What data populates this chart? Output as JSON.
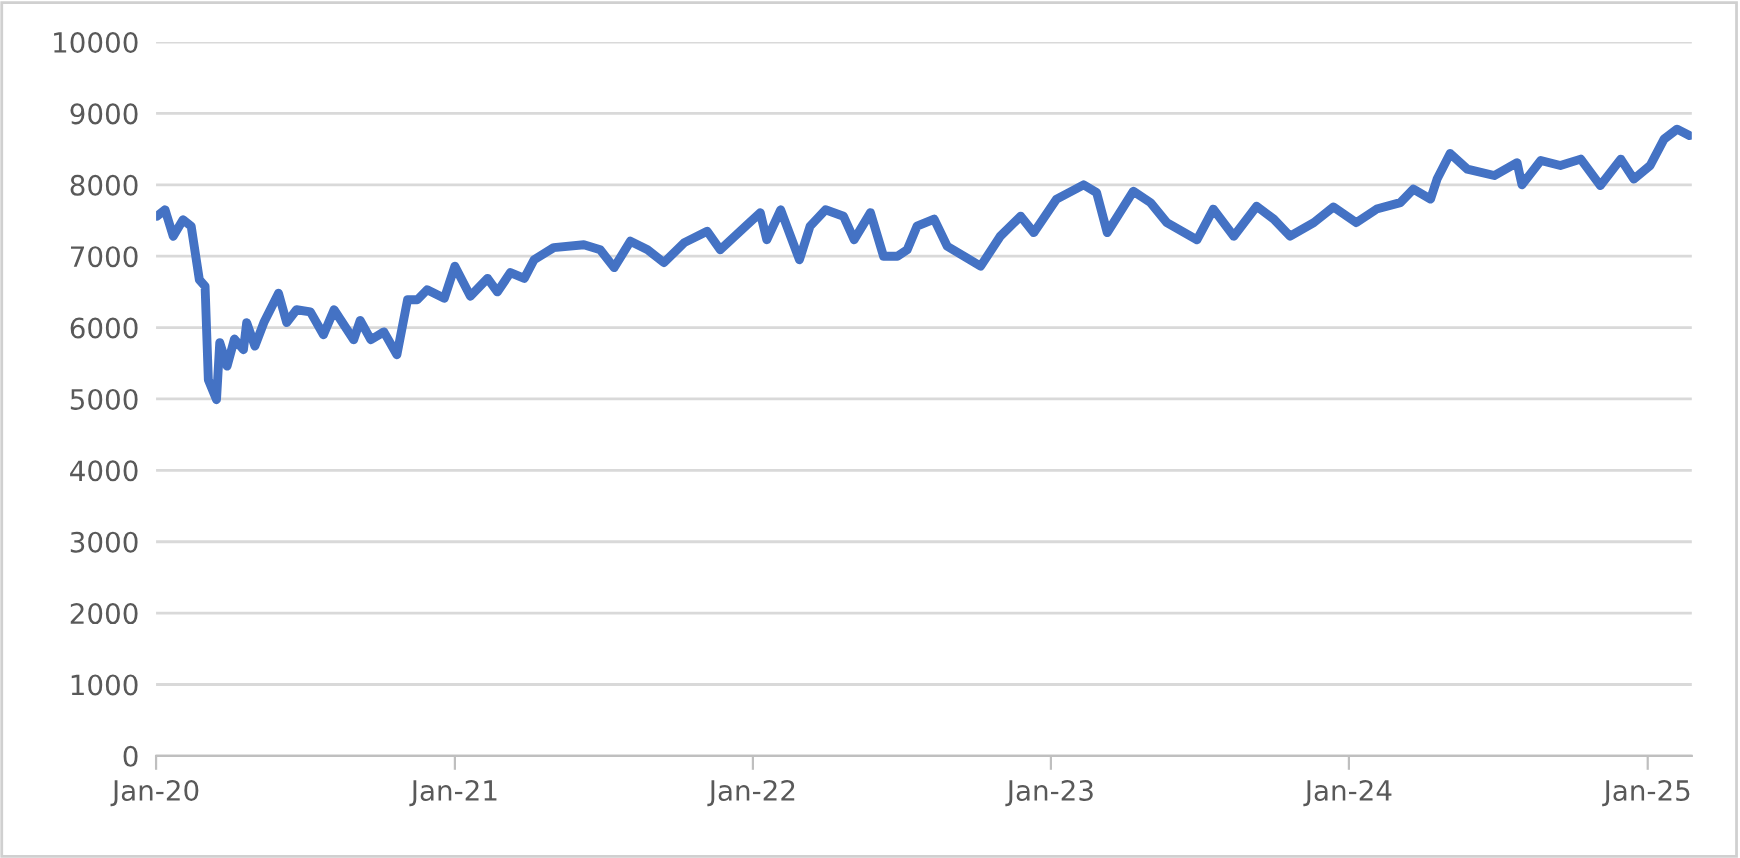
{
  "chart_data": {
    "type": "line",
    "x": [
      "2020-01-02",
      "2020-01-12",
      "2020-01-22",
      "2020-02-03",
      "2020-02-13",
      "2020-02-23",
      "2020-03-01",
      "2020-03-05",
      "2020-03-15",
      "2020-03-19",
      "2020-03-28",
      "2020-04-06",
      "2020-04-17",
      "2020-04-21",
      "2020-05-01",
      "2020-05-12",
      "2020-05-30",
      "2020-06-09",
      "2020-06-21",
      "2020-07-08",
      "2020-07-24",
      "2020-08-06",
      "2020-08-30",
      "2020-09-07",
      "2020-09-20",
      "2020-10-06",
      "2020-10-22",
      "2020-11-04",
      "2020-11-16",
      "2020-11-28",
      "2020-12-19",
      "2021-01-01",
      "2021-01-20",
      "2021-02-10",
      "2021-02-22",
      "2021-03-10",
      "2021-03-27",
      "2021-04-08",
      "2021-05-02",
      "2021-06-08",
      "2021-06-28",
      "2021-07-15",
      "2021-08-04",
      "2021-08-25",
      "2021-09-14",
      "2021-10-09",
      "2021-11-06",
      "2021-11-22",
      "2021-12-25",
      "2022-01-10",
      "2022-01-18",
      "2022-02-04",
      "2022-02-27",
      "2022-03-12",
      "2022-03-31",
      "2022-04-22",
      "2022-05-05",
      "2022-05-25",
      "2022-06-10",
      "2022-06-27",
      "2022-07-09",
      "2022-07-21",
      "2022-08-11",
      "2022-08-27",
      "2022-10-07",
      "2022-10-31",
      "2022-11-25",
      "2022-12-11",
      "2023-01-08",
      "2023-02-10",
      "2023-02-26",
      "2023-03-11",
      "2023-04-12",
      "2023-05-03",
      "2023-05-23",
      "2023-06-29",
      "2023-07-19",
      "2023-08-13",
      "2023-09-10",
      "2023-10-01",
      "2023-10-21",
      "2023-11-19",
      "2023-12-13",
      "2024-01-10",
      "2024-02-04",
      "2024-03-04",
      "2024-03-20",
      "2024-04-10",
      "2024-04-18",
      "2024-05-04",
      "2024-05-25",
      "2024-06-27",
      "2024-07-25",
      "2024-07-31",
      "2024-08-23",
      "2024-09-16",
      "2024-10-11",
      "2024-11-04",
      "2024-11-29",
      "2024-12-15",
      "2025-01-04",
      "2025-01-21",
      "2025-02-06",
      "2025-02-21"
    ],
    "series": [
      {
        "color": "#4472c4",
        "values": [
          7560,
          7650,
          7280,
          7510,
          7420,
          6670,
          6580,
          5270,
          4990,
          5790,
          5460,
          5840,
          5690,
          6070,
          5740,
          6070,
          6480,
          6070,
          6250,
          6220,
          5900,
          6250,
          5830,
          6100,
          5830,
          5940,
          5620,
          6390,
          6390,
          6530,
          6410,
          6860,
          6440,
          6690,
          6500,
          6770,
          6690,
          6950,
          7120,
          7160,
          7090,
          6840,
          7210,
          7090,
          6910,
          7190,
          7350,
          7090,
          7440,
          7610,
          7230,
          7650,
          6950,
          7420,
          7650,
          7560,
          7230,
          7610,
          7000,
          7000,
          7090,
          7420,
          7520,
          7140,
          6860,
          7280,
          7560,
          7330,
          7800,
          8000,
          7890,
          7330,
          7910,
          7750,
          7470,
          7230,
          7660,
          7280,
          7700,
          7520,
          7280,
          7470,
          7690,
          7470,
          7660,
          7750,
          7940,
          7800,
          8080,
          8440,
          8220,
          8130,
          8310,
          8000,
          8340,
          8270,
          8360,
          7990,
          8360,
          8080,
          8270,
          8640,
          8780,
          8690
        ]
      }
    ],
    "xlim": [
      "2020-01-01",
      "2025-02-24"
    ],
    "xticks": [
      {
        "value": "2020-01-01",
        "label": "Jan-20"
      },
      {
        "value": "2021-01-01",
        "label": "Jan-21"
      },
      {
        "value": "2022-01-01",
        "label": "Jan-22"
      },
      {
        "value": "2023-01-01",
        "label": "Jan-23"
      },
      {
        "value": "2024-01-01",
        "label": "Jan-24"
      },
      {
        "value": "2025-01-01",
        "label": "Jan-25"
      }
    ],
    "ylim": [
      0,
      10000
    ],
    "yticks": [
      0,
      1000,
      2000,
      3000,
      4000,
      5000,
      6000,
      7000,
      8000,
      9000,
      10000
    ],
    "grid": "y",
    "marker": "none",
    "line_style": "solid",
    "legend": false
  }
}
